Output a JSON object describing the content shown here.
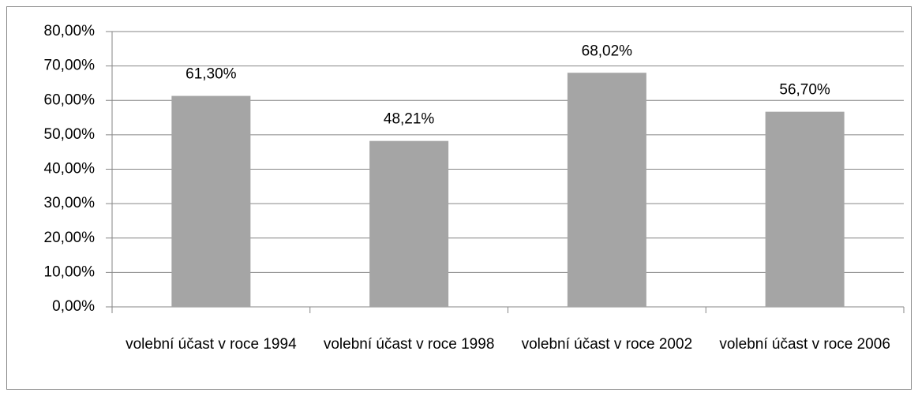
{
  "chart_data": {
    "type": "bar",
    "categories": [
      "volební účast v roce 1994",
      "volební účast v roce 1998",
      "volební účast v roce 2002",
      "volební účast v roce 2006"
    ],
    "values": [
      61.3,
      48.21,
      68.02,
      56.7
    ],
    "value_labels": [
      "61,30%",
      "48,21%",
      "68,02%",
      "56,70%"
    ],
    "color": "#a5a5a5",
    "ylim": [
      0,
      80
    ],
    "yticks": [
      {
        "value": 0,
        "label": "0,00%"
      },
      {
        "value": 10,
        "label": "10,00%"
      },
      {
        "value": 20,
        "label": "20,00%"
      },
      {
        "value": 30,
        "label": "30,00%"
      },
      {
        "value": 40,
        "label": "40,00%"
      },
      {
        "value": 50,
        "label": "50,00%"
      },
      {
        "value": 60,
        "label": "60,00%"
      },
      {
        "value": 70,
        "label": "70,00%"
      },
      {
        "value": 80,
        "label": "80,00%"
      }
    ],
    "grid": true
  }
}
